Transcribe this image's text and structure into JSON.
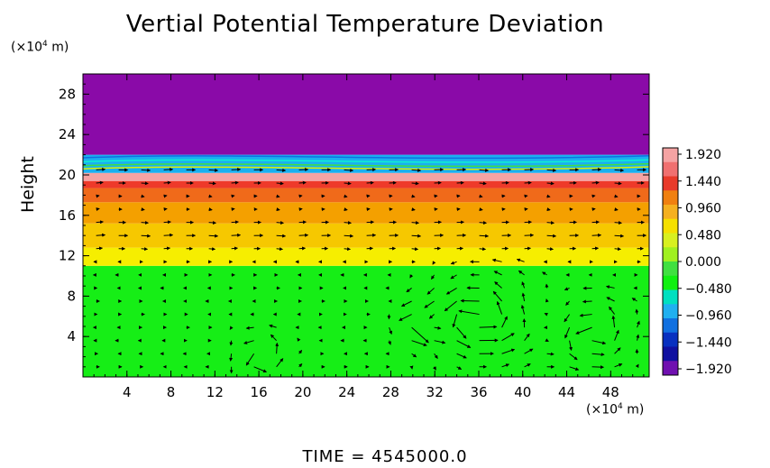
{
  "chart_data": {
    "type": "heatmap",
    "title": "Vertial Potential Temperature Deviation",
    "ylabel": "Height",
    "y_unit_label": "(×10",
    "y_unit_exp": "4",
    "y_unit_tail": " m)",
    "x_unit_label": "(×10",
    "x_unit_exp": "4",
    "x_unit_tail": " m)",
    "footer": "TIME  =  4545000.0",
    "xlim": [
      0,
      51.5
    ],
    "ylim": [
      0,
      30
    ],
    "x_ticks": [
      4,
      8,
      12,
      16,
      20,
      24,
      28,
      32,
      36,
      40,
      44,
      48
    ],
    "y_ticks": [
      4,
      8,
      12,
      16,
      20,
      24,
      28
    ],
    "colorbar": {
      "range": [
        -1.92,
        1.92
      ],
      "tick_labels": [
        "1.920",
        "1.440",
        "0.960",
        "0.480",
        "0.000",
        "−0.480",
        "−0.960",
        "−1.440",
        "−1.920"
      ],
      "colors_top_to_bottom": [
        "#f5a3a3",
        "#f07070",
        "#e83a2a",
        "#f08010",
        "#f5b020",
        "#f5e000",
        "#d8f020",
        "#a0f020",
        "#40e040",
        "#10f010",
        "#00e0c0",
        "#20b0f0",
        "#1070e0",
        "#0830c0",
        "#1010a0",
        "#7010b0"
      ]
    },
    "layers": [
      {
        "from": 0,
        "to": 11,
        "value": 0.0,
        "color": "#16ee16"
      },
      {
        "from": 11,
        "to": 12.8,
        "value": 0.7,
        "color": "#f6ee00"
      },
      {
        "from": 12.8,
        "to": 15.2,
        "value": 1.0,
        "color": "#f6c800"
      },
      {
        "from": 15.2,
        "to": 17.3,
        "value": 1.3,
        "color": "#f4a000"
      },
      {
        "from": 17.3,
        "to": 18.7,
        "value": 1.6,
        "color": "#f06a1a"
      },
      {
        "from": 18.7,
        "to": 19.4,
        "value": 1.9,
        "color": "#ee3a2a"
      },
      {
        "from": 19.4,
        "to": 20.2,
        "value": 1.92,
        "color": "#f5a3a3"
      },
      {
        "from": 20.2,
        "to": 22.0,
        "value": -1.0,
        "color": "#1ab0f0"
      },
      {
        "from": 22.0,
        "to": 30,
        "value": -1.92,
        "color": "#8a0aa8"
      }
    ]
  }
}
